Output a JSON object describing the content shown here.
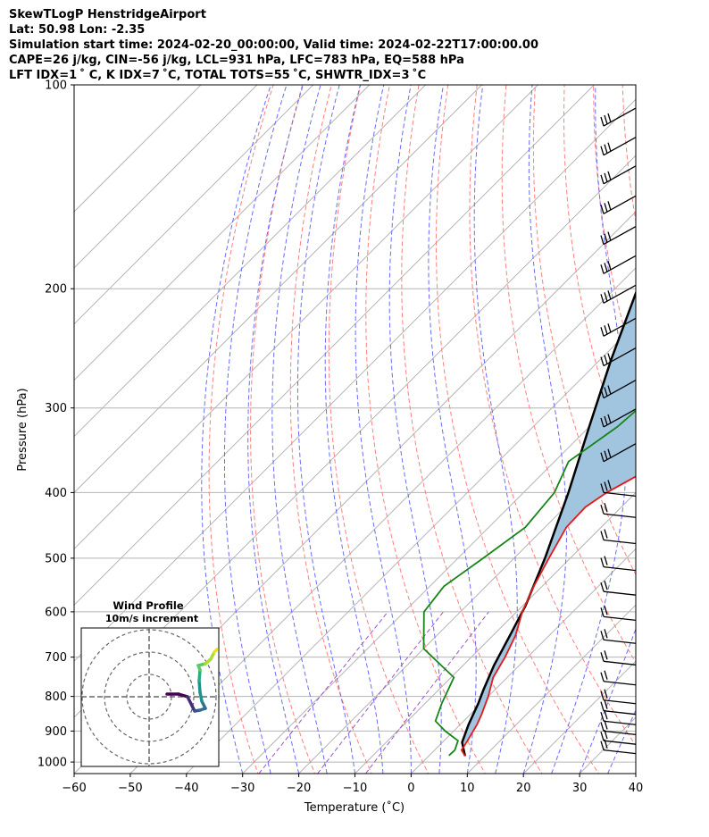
{
  "header": {
    "title": "SkewTLogP HenstridgeAirport",
    "location": "Lat: 50.98   Lon: -2.35",
    "times": "Simulation start time: 2024-02-20_00:00:00, Valid time: 2024-02-22T17:00:00.00",
    "params1": "CAPE=26 j/kg, CIN=-56 j/kg, LCL=931 hPa, LFC=783 hPa, EQ=588 hPa",
    "params2": "LFT IDX=1 ˚ C, K IDX=7 ˚C, TOTAL TOTS=55 ˚C, SHWTR_IDX=3 ˚C"
  },
  "chart_data": {
    "type": "line",
    "subtype": "skew-T log-P",
    "xlabel": "Temperature (˚C)",
    "ylabel": "Pressure (hPa)",
    "xlim": [
      -60,
      40
    ],
    "ylim": [
      1040,
      100
    ],
    "y_scale": "log",
    "x_ticks": [
      -60,
      -50,
      -40,
      -30,
      -20,
      -10,
      0,
      10,
      20,
      30,
      40
    ],
    "y_ticks": [
      100,
      200,
      300,
      400,
      500,
      600,
      700,
      800,
      900,
      1000
    ],
    "grid": true,
    "colors": {
      "temperature": "#e41a1c",
      "dewpoint": "#168516",
      "parcel": "#000000",
      "cape_fill": "#a2c5df",
      "dry_adiabats": "#ff7f7f",
      "moist_adiabats": "#6b6bff",
      "mixing_ratio": "#9a55c9",
      "isotherms": "#b4b4b4"
    },
    "series": [
      {
        "key": "temperature",
        "points": [
          [
            6.5,
            980
          ],
          [
            4.8,
            960
          ],
          [
            4.2,
            930
          ],
          [
            3.0,
            880
          ],
          [
            2.0,
            850
          ],
          [
            0.0,
            800
          ],
          [
            -2.5,
            750
          ],
          [
            -4.0,
            700
          ],
          [
            -6.0,
            650
          ],
          [
            -9.0,
            600
          ],
          [
            -11.5,
            550
          ],
          [
            -13.8,
            500
          ],
          [
            -16.2,
            450
          ],
          [
            -16.4,
            420
          ],
          [
            -15.2,
            400
          ],
          [
            -10.7,
            360
          ],
          [
            -11.1,
            330
          ],
          [
            -11.5,
            300
          ],
          [
            -10.5,
            270
          ],
          [
            -7.0,
            250
          ],
          [
            -3.2,
            230
          ],
          [
            -1.5,
            220
          ],
          [
            0.5,
            200
          ],
          [
            3.5,
            180
          ],
          [
            5.5,
            160
          ],
          [
            8.0,
            140
          ],
          [
            11.0,
            120
          ],
          [
            14.5,
            110
          ],
          [
            17.5,
            100
          ]
        ]
      },
      {
        "key": "dewpoint",
        "points": [
          [
            3.5,
            978
          ],
          [
            3.6,
            960
          ],
          [
            2.5,
            930
          ],
          [
            -1.5,
            900
          ],
          [
            -5.0,
            870
          ],
          [
            -7.0,
            820
          ],
          [
            -9.5,
            750
          ],
          [
            -20.0,
            680
          ],
          [
            -26.5,
            600
          ],
          [
            -27.5,
            550
          ],
          [
            -25.5,
            500
          ],
          [
            -23.5,
            450
          ],
          [
            -24.5,
            400
          ],
          [
            -27.5,
            360
          ],
          [
            -25.0,
            320
          ],
          [
            -24.5,
            300
          ],
          [
            -27.0,
            270
          ],
          [
            -28.5,
            250
          ],
          [
            -29.5,
            230
          ],
          [
            -31.0,
            200
          ],
          [
            -33.0,
            180
          ],
          [
            -31.0,
            165
          ],
          [
            -25.0,
            140
          ],
          [
            -19.0,
            120
          ],
          [
            -15.5,
            100
          ]
        ]
      },
      {
        "key": "parcel",
        "points": [
          [
            6.5,
            980
          ],
          [
            3.5,
            935
          ],
          [
            1.5,
            880
          ],
          [
            -0.5,
            820
          ],
          [
            -2.0,
            783
          ],
          [
            -4.5,
            720
          ],
          [
            -7.0,
            650
          ],
          [
            -9.5,
            588
          ],
          [
            -14.5,
            500
          ],
          [
            -22.0,
            400
          ],
          [
            -30.0,
            320
          ],
          [
            -38.0,
            255
          ],
          [
            -46.0,
            200
          ],
          [
            -54.5,
            160
          ],
          [
            -63.0,
            130
          ],
          [
            -71.0,
            108
          ],
          [
            -74.0,
            100
          ]
        ]
      }
    ],
    "winds_shown": true,
    "hodograph": {
      "title": "Wind Profile",
      "subtitle": "10m/s increment"
    }
  }
}
